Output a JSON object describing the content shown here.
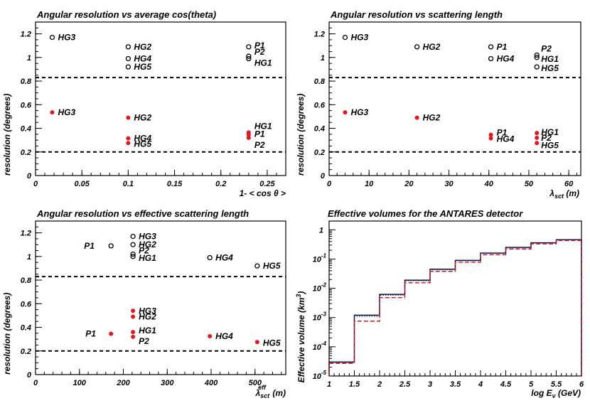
{
  "chart_data": [
    {
      "id": "p1",
      "type": "scatter",
      "title": "Angular resolution vs average cos(theta)",
      "xlabel": "1- < cos θ >",
      "ylabel": "resolution (degrees)",
      "xlim": [
        0,
        0.27
      ],
      "ylim": [
        0,
        1.3
      ],
      "xticks": [
        "0",
        "0.05",
        "0.1",
        "0.15",
        "0.2",
        "0.25"
      ],
      "xtick_values": [
        0,
        0.05,
        0.1,
        0.15,
        0.2,
        0.25
      ],
      "yticks": [
        "0",
        "0.2",
        "0.4",
        "0.6",
        "0.8",
        "1",
        "1.2"
      ],
      "ytick_values": [
        0,
        0.2,
        0.4,
        0.6,
        0.8,
        1.0,
        1.2
      ],
      "reference_lines": [
        0.83,
        0.2
      ],
      "series": [
        {
          "name": "open",
          "marker": "open",
          "points": [
            {
              "label": "HG3",
              "x": 0.018,
              "y": 1.17
            },
            {
              "label": "HG2",
              "x": 0.1,
              "y": 1.09
            },
            {
              "label": "HG4",
              "x": 0.1,
              "y": 0.99
            },
            {
              "label": "HG5",
              "x": 0.1,
              "y": 0.92
            },
            {
              "label": "P1",
              "x": 0.23,
              "y": 1.09
            },
            {
              "label": "P2",
              "x": 0.23,
              "y": 1.01
            },
            {
              "label": "HG1",
              "x": 0.23,
              "y": 0.99
            }
          ]
        },
        {
          "name": "filled",
          "marker": "filled",
          "points": [
            {
              "label": "HG3",
              "x": 0.018,
              "y": 0.535
            },
            {
              "label": "HG2",
              "x": 0.1,
              "y": 0.49
            },
            {
              "label": "HG4",
              "x": 0.1,
              "y": 0.315
            },
            {
              "label": "HG5",
              "x": 0.1,
              "y": 0.275
            },
            {
              "label": "HG1",
              "x": 0.23,
              "y": 0.365
            },
            {
              "label": "P1",
              "x": 0.23,
              "y": 0.345
            },
            {
              "label": "P2",
              "x": 0.23,
              "y": 0.32
            }
          ]
        }
      ]
    },
    {
      "id": "p2",
      "type": "scatter",
      "title": "Angular resolution vs scattering length",
      "xlabel": "λsct (m)",
      "ylabel": "resolution (degrees)",
      "xlim": [
        0,
        63
      ],
      "ylim": [
        0,
        1.3
      ],
      "xticks": [
        "0",
        "10",
        "20",
        "30",
        "40",
        "50",
        "60"
      ],
      "xtick_values": [
        0,
        10,
        20,
        30,
        40,
        50,
        60
      ],
      "yticks": [
        "0",
        "0.2",
        "0.4",
        "0.6",
        "0.8",
        "1",
        "1.2"
      ],
      "ytick_values": [
        0,
        0.2,
        0.4,
        0.6,
        0.8,
        1.0,
        1.2
      ],
      "reference_lines": [
        0.83,
        0.2
      ],
      "series": [
        {
          "name": "open",
          "marker": "open",
          "points": [
            {
              "label": "HG3",
              "x": 4,
              "y": 1.17
            },
            {
              "label": "HG2",
              "x": 22,
              "y": 1.09
            },
            {
              "label": "P1",
              "x": 40.5,
              "y": 1.09
            },
            {
              "label": "HG4",
              "x": 40.5,
              "y": 0.99
            },
            {
              "label": "P2",
              "x": 52,
              "y": 1.02
            },
            {
              "label": "HG1",
              "x": 52,
              "y": 1.0
            },
            {
              "label": "HG5",
              "x": 52,
              "y": 0.92
            }
          ]
        },
        {
          "name": "filled",
          "marker": "filled",
          "points": [
            {
              "label": "HG3",
              "x": 4,
              "y": 0.535
            },
            {
              "label": "HG2",
              "x": 22,
              "y": 0.49
            },
            {
              "label": "P1",
              "x": 40.5,
              "y": 0.345
            },
            {
              "label": "HG4",
              "x": 40.5,
              "y": 0.315
            },
            {
              "label": "HG1",
              "x": 52,
              "y": 0.36
            },
            {
              "label": "P2",
              "x": 52,
              "y": 0.32
            },
            {
              "label": "HG5",
              "x": 52,
              "y": 0.275
            }
          ]
        }
      ]
    },
    {
      "id": "p3",
      "type": "scatter",
      "title": "Angular resolution vs effective scattering length",
      "xlabel": "λsct^eff (m)",
      "ylabel": "resolution (degrees)",
      "xlim": [
        0,
        570
      ],
      "ylim": [
        0,
        1.3
      ],
      "xticks": [
        "0",
        "100",
        "200",
        "300",
        "400",
        "500"
      ],
      "xtick_values": [
        0,
        100,
        200,
        300,
        400,
        500
      ],
      "yticks": [
        "0",
        "0.2",
        "0.4",
        "0.6",
        "0.8",
        "1",
        "1.2"
      ],
      "ytick_values": [
        0,
        0.2,
        0.4,
        0.6,
        0.8,
        1.0,
        1.2
      ],
      "reference_lines": [
        0.83,
        0.2
      ],
      "series": [
        {
          "name": "open",
          "marker": "open",
          "points": [
            {
              "label": "HG3",
              "x": 222,
              "y": 1.17
            },
            {
              "label": "HG2",
              "x": 222,
              "y": 1.1
            },
            {
              "label": "P1",
              "x": 172,
              "y": 1.09
            },
            {
              "label": "P2",
              "x": 222,
              "y": 1.02
            },
            {
              "label": "HG1",
              "x": 222,
              "y": 1.0
            },
            {
              "label": "HG4",
              "x": 397,
              "y": 0.99
            },
            {
              "label": "HG5",
              "x": 505,
              "y": 0.92
            }
          ]
        },
        {
          "name": "filled",
          "marker": "filled",
          "points": [
            {
              "label": "HG3",
              "x": 222,
              "y": 0.54
            },
            {
              "label": "HG2",
              "x": 222,
              "y": 0.49
            },
            {
              "label": "HG1",
              "x": 222,
              "y": 0.36
            },
            {
              "label": "P1",
              "x": 172,
              "y": 0.345
            },
            {
              "label": "P2",
              "x": 222,
              "y": 0.32
            },
            {
              "label": "HG4",
              "x": 397,
              "y": 0.325
            },
            {
              "label": "HG5",
              "x": 505,
              "y": 0.275
            }
          ]
        }
      ]
    },
    {
      "id": "p4",
      "type": "line",
      "title": "Effective volumes for the ANTARES detector",
      "xlabel": "log Eν (GeV)",
      "ylabel": "Effective volume (km³)",
      "xlim": [
        1,
        6
      ],
      "ylim_log10": [
        -5,
        0.3
      ],
      "xticks": [
        "1",
        "1.5",
        "2",
        "2.5",
        "3",
        "3.5",
        "4",
        "4.5",
        "5",
        "5.5",
        "6"
      ],
      "xtick_values": [
        1,
        1.5,
        2,
        2.5,
        3,
        3.5,
        4,
        4.5,
        5,
        5.5,
        6
      ],
      "yticks": [
        "10",
        "10",
        "10",
        "10",
        "10",
        "1"
      ],
      "ytick_exponents": [
        "-5",
        "-4",
        "-3",
        "-2",
        "-1",
        ""
      ],
      "ytick_values": [
        -5,
        -4,
        -3,
        -2,
        -1,
        0
      ],
      "bin_edges": [
        1,
        1.5,
        2,
        2.5,
        3,
        3.5,
        4,
        4.5,
        5,
        5.5,
        6
      ],
      "series": [
        {
          "name": "black",
          "color": "#000000",
          "style": "solid",
          "values": [
            3e-05,
            0.0012,
            0.0062,
            0.019,
            0.045,
            0.09,
            0.16,
            0.25,
            0.36,
            0.46
          ]
        },
        {
          "name": "blue",
          "color": "#1f3fd8",
          "style": "dotted",
          "values": [
            2.9e-05,
            0.0011,
            0.0058,
            0.018,
            0.043,
            0.087,
            0.155,
            0.24,
            0.35,
            0.45
          ]
        },
        {
          "name": "red",
          "color": "#e01010",
          "style": "dashed",
          "values": [
            2.7e-05,
            0.00075,
            0.0048,
            0.0155,
            0.038,
            0.078,
            0.14,
            0.22,
            0.33,
            0.43
          ]
        }
      ]
    }
  ]
}
